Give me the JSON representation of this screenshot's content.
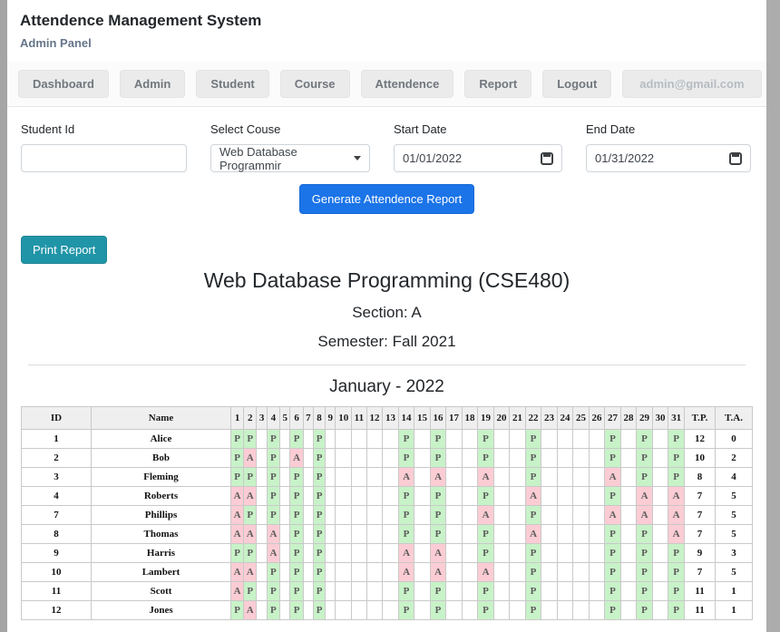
{
  "window": {
    "title": "Attendence Management System",
    "subtitle": "Admin Panel"
  },
  "nav": {
    "items": [
      "Dashboard",
      "Admin",
      "Student",
      "Course",
      "Attendence",
      "Report"
    ],
    "logout_label": "Logout",
    "user_email": "admin@gmail.com"
  },
  "form": {
    "student_id": {
      "label": "Student Id",
      "value": ""
    },
    "course": {
      "label": "Select Couse",
      "selected": "Web Database Programmir"
    },
    "start_date": {
      "label": "Start Date",
      "value": "01/01/2022"
    },
    "end_date": {
      "label": "End Date",
      "value": "01/31/2022"
    },
    "generate_label": "Generate Attendence Report"
  },
  "report": {
    "print_label": "Print Report",
    "course_title": "Web Database Programming (CSE480)",
    "section": "Section: A",
    "semester": "Semester: Fall 2021",
    "month_title": "January - 2022"
  },
  "table": {
    "id_header": "ID",
    "name_header": "Name",
    "tp_header": "T.P.",
    "ta_header": "T.A.",
    "day_headers": [
      "1",
      "2",
      "3",
      "4",
      "5",
      "6",
      "7",
      "8",
      "9",
      "10",
      "11",
      "12",
      "13",
      "14",
      "15",
      "16",
      "17",
      "18",
      "19",
      "20",
      "21",
      "22",
      "23",
      "24",
      "25",
      "26",
      "27",
      "28",
      "29",
      "30",
      "31"
    ],
    "rows": [
      {
        "id": "1",
        "name": "Alice",
        "days": {
          "1": "P",
          "2": "P",
          "4": "P",
          "6": "P",
          "8": "P",
          "14": "P",
          "16": "P",
          "19": "P",
          "22": "P",
          "27": "P",
          "29": "P",
          "31": "P"
        },
        "tp": "12",
        "ta": "0"
      },
      {
        "id": "2",
        "name": "Bob",
        "days": {
          "1": "P",
          "2": "A",
          "4": "P",
          "6": "A",
          "8": "P",
          "14": "P",
          "16": "P",
          "19": "P",
          "22": "P",
          "27": "P",
          "29": "P",
          "31": "P"
        },
        "tp": "10",
        "ta": "2"
      },
      {
        "id": "3",
        "name": "Fleming",
        "days": {
          "1": "P",
          "2": "P",
          "4": "P",
          "6": "P",
          "8": "P",
          "14": "A",
          "16": "A",
          "19": "A",
          "22": "P",
          "27": "A",
          "29": "P",
          "31": "P"
        },
        "tp": "8",
        "ta": "4"
      },
      {
        "id": "4",
        "name": "Roberts",
        "days": {
          "1": "A",
          "2": "A",
          "4": "P",
          "6": "P",
          "8": "P",
          "14": "P",
          "16": "P",
          "19": "P",
          "22": "A",
          "27": "P",
          "29": "A",
          "31": "A"
        },
        "tp": "7",
        "ta": "5"
      },
      {
        "id": "7",
        "name": "Phillips",
        "days": {
          "1": "A",
          "2": "P",
          "4": "P",
          "6": "P",
          "8": "P",
          "14": "P",
          "16": "P",
          "19": "A",
          "22": "P",
          "27": "A",
          "29": "A",
          "31": "A"
        },
        "tp": "7",
        "ta": "5"
      },
      {
        "id": "8",
        "name": "Thomas",
        "days": {
          "1": "A",
          "2": "A",
          "4": "A",
          "6": "P",
          "8": "P",
          "14": "P",
          "16": "P",
          "19": "P",
          "22": "A",
          "27": "P",
          "29": "P",
          "31": "A"
        },
        "tp": "7",
        "ta": "5"
      },
      {
        "id": "9",
        "name": "Harris",
        "days": {
          "1": "P",
          "2": "P",
          "4": "A",
          "6": "P",
          "8": "P",
          "14": "A",
          "16": "A",
          "19": "P",
          "22": "P",
          "27": "P",
          "29": "P",
          "31": "P"
        },
        "tp": "9",
        "ta": "3"
      },
      {
        "id": "10",
        "name": "Lambert",
        "days": {
          "1": "A",
          "2": "A",
          "4": "P",
          "6": "P",
          "8": "P",
          "14": "A",
          "16": "A",
          "19": "A",
          "22": "P",
          "27": "P",
          "29": "P",
          "31": "P"
        },
        "tp": "7",
        "ta": "5"
      },
      {
        "id": "11",
        "name": "Scott",
        "days": {
          "1": "A",
          "2": "P",
          "4": "P",
          "6": "P",
          "8": "P",
          "14": "P",
          "16": "P",
          "19": "P",
          "22": "P",
          "27": "P",
          "29": "P",
          "31": "P"
        },
        "tp": "11",
        "ta": "1"
      },
      {
        "id": "12",
        "name": "Jones",
        "days": {
          "1": "P",
          "2": "A",
          "4": "P",
          "6": "P",
          "8": "P",
          "14": "P",
          "16": "P",
          "19": "P",
          "22": "P",
          "27": "P",
          "29": "P",
          "31": "P"
        },
        "tp": "11",
        "ta": "1"
      }
    ]
  },
  "colors": {
    "present_bg": "#c8f2c8",
    "absent_bg": "#fbccd3",
    "primary": "#1b74e8",
    "info": "#2195a8"
  }
}
